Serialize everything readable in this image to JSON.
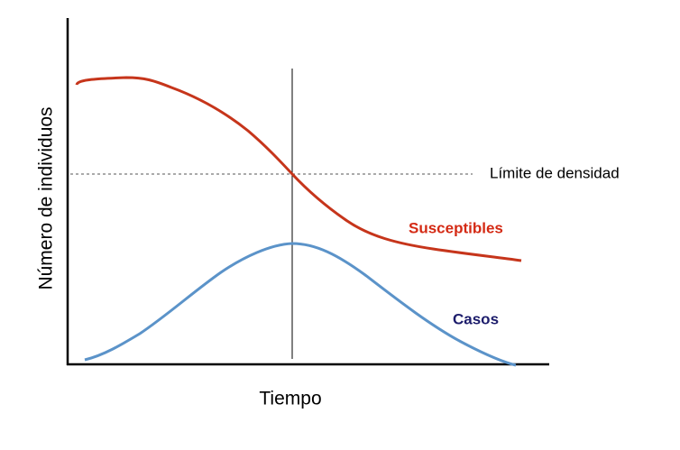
{
  "axes": {
    "y_label": "Número de individuos",
    "x_label": "Tiempo"
  },
  "annotations": {
    "threshold": "Límite de densidad",
    "susceptibles": "Susceptibles",
    "casos": "Casos"
  }
}
